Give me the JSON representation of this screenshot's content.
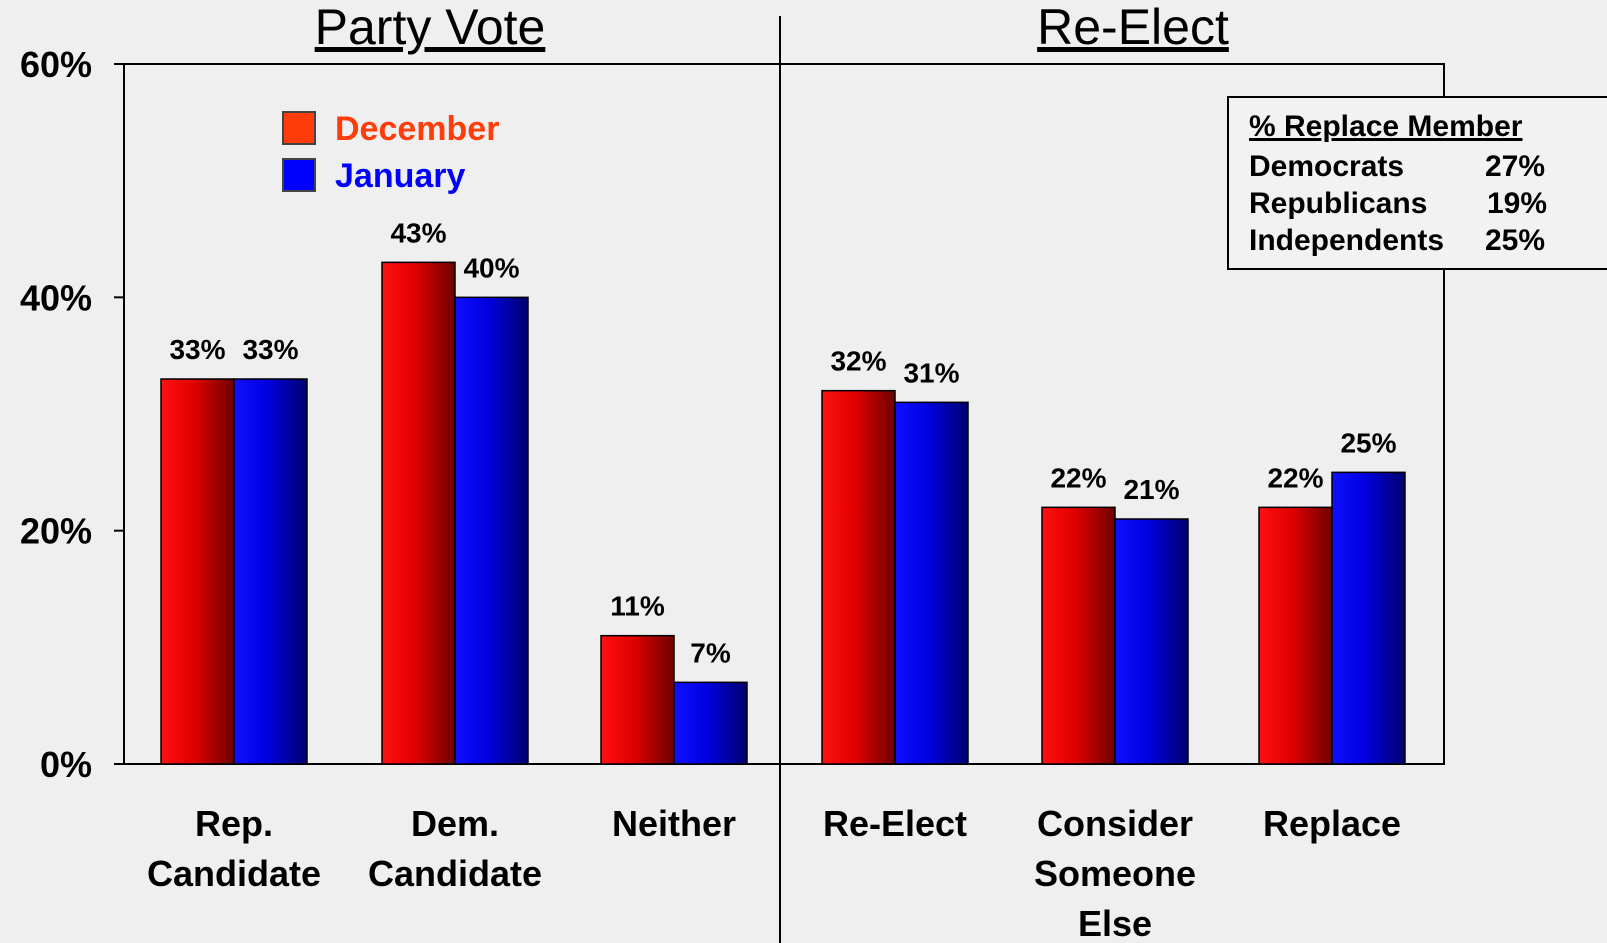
{
  "chart_data": {
    "type": "bar",
    "panels": [
      {
        "title": "Party Vote",
        "categories": [
          [
            "Rep.",
            "Candidate"
          ],
          [
            "Dem.",
            "Candidate"
          ],
          [
            "Neither"
          ]
        ],
        "series": [
          {
            "name": "December",
            "values": [
              33,
              43,
              11
            ]
          },
          {
            "name": "January",
            "values": [
              33,
              40,
              7
            ]
          }
        ]
      },
      {
        "title": "Re-Elect",
        "categories": [
          [
            "Re-Elect"
          ],
          [
            "Consider",
            "Someone",
            "Else"
          ],
          [
            "Replace"
          ]
        ],
        "series": [
          {
            "name": "December",
            "values": [
              32,
              22,
              22
            ]
          },
          {
            "name": "January",
            "values": [
              31,
              21,
              25
            ]
          }
        ]
      }
    ],
    "y_ticks": [
      "0%",
      "20%",
      "40%",
      "60%"
    ],
    "ylim": [
      0,
      60
    ],
    "grid": false,
    "legend": {
      "placement": "top-left",
      "entries": [
        {
          "name": "December",
          "color": "#ff3c0a"
        },
        {
          "name": "January",
          "color": "#0000ff"
        }
      ]
    },
    "colors": {
      "December": "#ff0000",
      "January": "#0000ff"
    },
    "annotation_box": {
      "title": "% Replace Member",
      "rows": [
        {
          "label": "Democrats",
          "value": "27%"
        },
        {
          "label": "Republicans",
          "value": "19%"
        },
        {
          "label": "Independents",
          "value": "25%"
        }
      ]
    }
  }
}
